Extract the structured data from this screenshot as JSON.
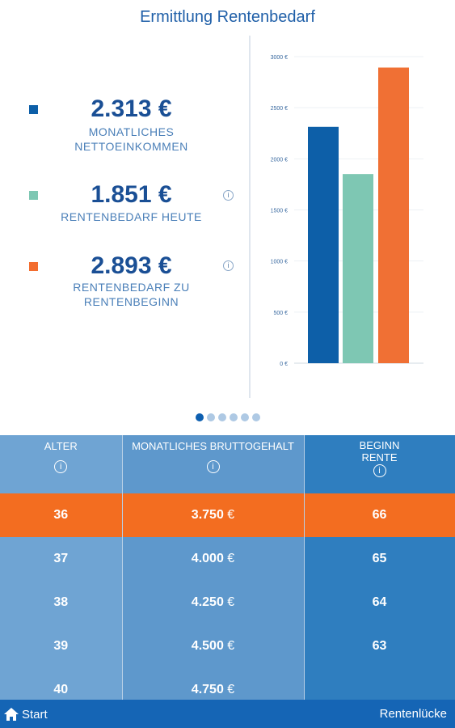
{
  "title": "Ermittlung Rentenbedarf",
  "metrics": [
    {
      "value": "2.313 €",
      "label1": "MONATLICHES",
      "label2": "NETTOEINKOMMEN",
      "color": "#0d5fa8"
    },
    {
      "value": "1.851 €",
      "label1": "RENTENBEDARF HEUTE",
      "label2": "",
      "color": "#7ec7b3"
    },
    {
      "value": "2.893 €",
      "label1": "RENTENBEDARF ZU",
      "label2": "RENTENBEGINN",
      "color": "#f36d2f"
    }
  ],
  "chart_data": {
    "type": "bar",
    "categories": [
      "",
      "",
      ""
    ],
    "values": [
      2313,
      1851,
      2893
    ],
    "colors": [
      "#0d5fa8",
      "#7ec7b3",
      "#f07034"
    ],
    "ylim": [
      0,
      3000
    ],
    "yticks": [
      "0 €",
      "500 €",
      "1000 €",
      "1500 €",
      "2000 €",
      "2500 €",
      "3000 €"
    ],
    "grid": true
  },
  "pager": {
    "count": 6,
    "active": 0
  },
  "table": {
    "headers": [
      {
        "label": "ALTER"
      },
      {
        "label": "MONATLICHES BRUTTOGEHALT"
      },
      {
        "label": "BEGINN RENTE"
      }
    ],
    "rows": [
      {
        "alter": "36",
        "gehalt": "3.750",
        "beginn": "66",
        "highlight": true
      },
      {
        "alter": "37",
        "gehalt": "4.000",
        "beginn": "65"
      },
      {
        "alter": "38",
        "gehalt": "4.250",
        "beginn": "64"
      },
      {
        "alter": "39",
        "gehalt": "4.500",
        "beginn": "63"
      },
      {
        "alter": "40",
        "gehalt": "4.750",
        "beginn": ""
      }
    ],
    "currency": "€"
  },
  "footer": {
    "start": "Start",
    "right": "Rentenlücke"
  }
}
